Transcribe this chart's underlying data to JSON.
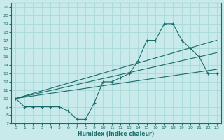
{
  "xlabel": "Humidex (Indice chaleur)",
  "bg_color": "#c8eaea",
  "grid_color": "#a8d8d8",
  "line_color": "#1a6b6b",
  "xlim": [
    -0.5,
    23.5
  ],
  "ylim": [
    7,
    21.5
  ],
  "xticks": [
    0,
    1,
    2,
    3,
    4,
    5,
    6,
    7,
    8,
    9,
    10,
    11,
    12,
    13,
    14,
    15,
    16,
    17,
    18,
    19,
    20,
    21,
    22,
    23
  ],
  "yticks": [
    7,
    8,
    9,
    10,
    11,
    12,
    13,
    14,
    15,
    16,
    17,
    18,
    19,
    20,
    21
  ],
  "curve1_x": [
    0,
    1,
    2,
    3,
    4,
    5,
    6,
    7,
    8,
    9,
    10,
    11,
    12,
    13,
    14,
    15,
    16,
    17,
    18,
    19,
    20,
    21,
    22,
    23
  ],
  "curve1_y": [
    10,
    9,
    9,
    9,
    9,
    9,
    8.5,
    7.5,
    7.5,
    9.5,
    12,
    12,
    12.5,
    13,
    14.5,
    17,
    17,
    19,
    19,
    17,
    16,
    15,
    13,
    13
  ],
  "line1_x": [
    0,
    23
  ],
  "line1_y": [
    10,
    17
  ],
  "line2_x": [
    0,
    23
  ],
  "line2_y": [
    10,
    15.5
  ],
  "line3_x": [
    0,
    23
  ],
  "line3_y": [
    10,
    13.5
  ]
}
